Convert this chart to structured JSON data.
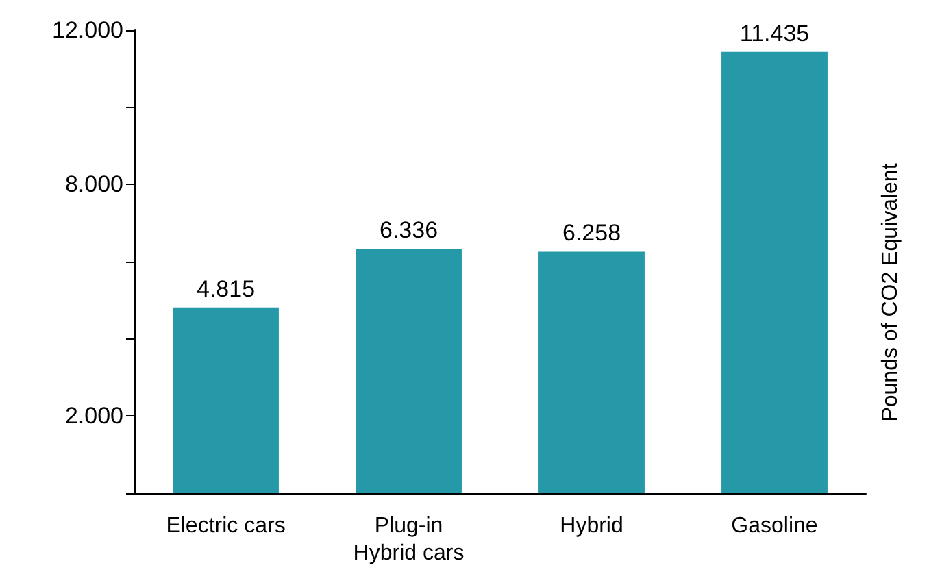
{
  "chart_data": {
    "type": "bar",
    "ylabel": "Pounds of CO2 Equivalent",
    "categories": [
      "Electric cars",
      "Plug-in\nHybrid cars",
      "Hybrid",
      "Gasoline"
    ],
    "values": [
      4.815,
      6.336,
      6.258,
      11.435
    ],
    "color": "#2599a8",
    "ylim": [
      0,
      12
    ],
    "yticks": [
      {
        "value": 0,
        "label": null
      },
      {
        "value": 2,
        "label": "2.000"
      },
      {
        "value": 4,
        "label": null
      },
      {
        "value": 6,
        "label": null
      },
      {
        "value": 8,
        "label": "8.000"
      },
      {
        "value": 10,
        "label": null
      },
      {
        "value": 12,
        "label": "12.000"
      }
    ],
    "data_labels": true,
    "grid": false
  }
}
